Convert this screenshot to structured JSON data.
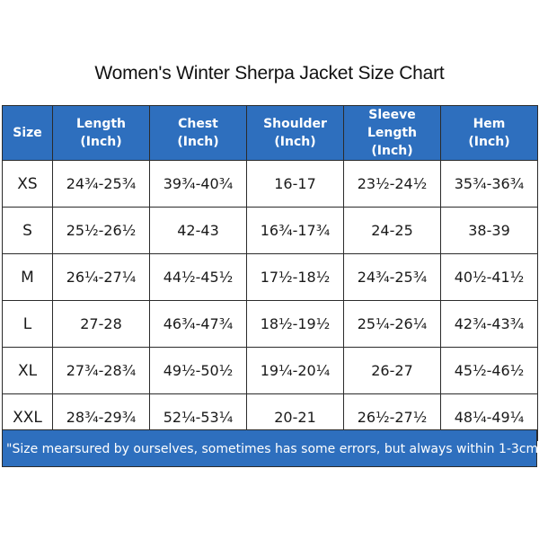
{
  "title": "Women's Winter Sherpa Jacket Size Chart",
  "table": {
    "headers": [
      {
        "line1": "Size",
        "line2": ""
      },
      {
        "line1": "Length",
        "line2": "(Inch)"
      },
      {
        "line1": "Chest",
        "line2": "(Inch)"
      },
      {
        "line1": "Shoulder",
        "line2": "(Inch)"
      },
      {
        "line1": "Sleeve Length",
        "line2": "(Inch)"
      },
      {
        "line1": "Hem",
        "line2": "(Inch)"
      }
    ],
    "rows": [
      [
        "XS",
        "24¾-25¾",
        "39¾-40¾",
        "16-17",
        "23½-24½",
        "35¾-36¾"
      ],
      [
        "S",
        "25½-26½",
        "42-43",
        "16¾-17¾",
        "24-25",
        "38-39"
      ],
      [
        "M",
        "26¼-27¼",
        "44½-45½",
        "17½-18½",
        "24¾-25¾",
        "40½-41½"
      ],
      [
        "L",
        "27-28",
        "46¾-47¾",
        "18½-19½",
        "25¼-26¼",
        "42¾-43¾"
      ],
      [
        "XL",
        "27¾-28¾",
        "49½-50½",
        "19¼-20¼",
        "26-27",
        "45½-46½"
      ],
      [
        "XXL",
        "28¾-29¾",
        "52¼-53¼",
        "20-21",
        "26½-27½",
        "48¼-49¼"
      ]
    ]
  },
  "note": "\"Size mearsured by ourselves, sometimes has some errors, but always within 1-3cm.\"",
  "colors": {
    "header_bg": "#2e6fbe",
    "header_text": "#ffffff",
    "border": "#2b2b2b"
  }
}
